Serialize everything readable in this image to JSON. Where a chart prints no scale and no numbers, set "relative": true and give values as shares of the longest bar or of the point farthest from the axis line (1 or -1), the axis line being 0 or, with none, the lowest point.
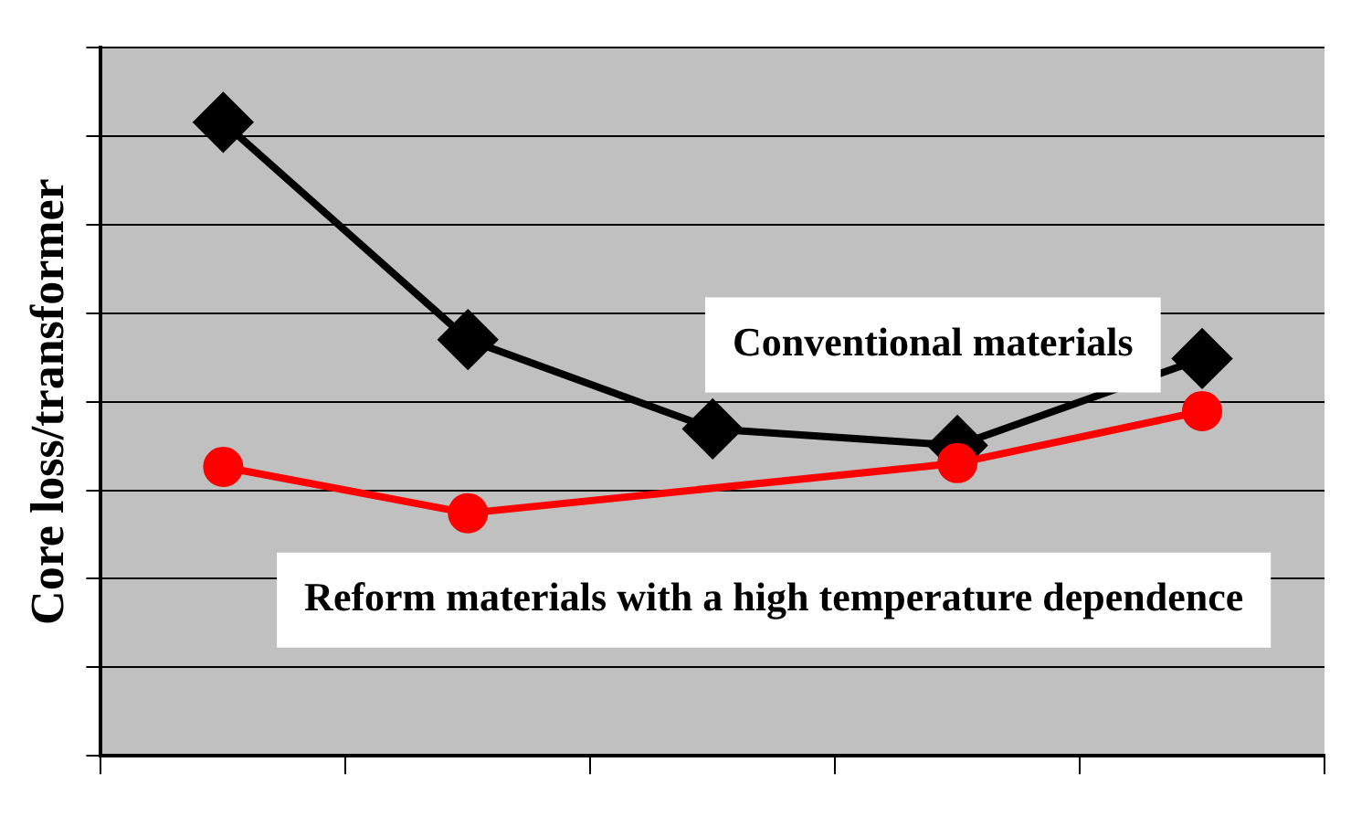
{
  "chart_data": {
    "type": "line",
    "ylabel": "Core loss/transformer",
    "relative": true,
    "grid": "y",
    "categories": [
      null,
      null,
      null,
      null,
      null
    ],
    "series": [
      {
        "name": "Conventional materials",
        "color": "#000000",
        "marker": "diamond",
        "values": [
          1,
          0.657,
          0.516,
          0.49,
          0.627
        ]
      },
      {
        "name": "Reform materials with a high temperature dependence",
        "color": "#ff0000",
        "marker": "circle",
        "values": [
          0.456,
          0.383,
          null,
          0.462,
          0.544
        ]
      }
    ]
  }
}
